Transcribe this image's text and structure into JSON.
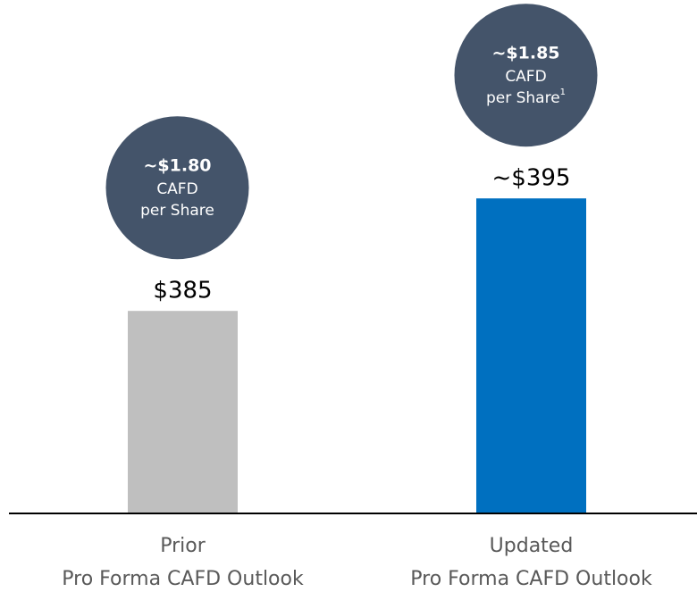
{
  "chart_data": {
    "type": "bar",
    "categories": [
      [
        "Prior",
        "Pro Forma CAFD Outlook"
      ],
      [
        "Updated",
        "Pro Forma CAFD Outlook"
      ]
    ],
    "values": [
      385,
      395
    ],
    "value_labels": [
      "$385",
      "~$395"
    ],
    "colors": [
      "#bfbfbf",
      "#0070c0"
    ],
    "ylim": [
      367,
      412
    ],
    "annotations": [
      {
        "headline": "~$1.80",
        "lines": [
          "CAFD",
          "per Share"
        ]
      },
      {
        "headline": "~$1.85",
        "lines": [
          "CAFD",
          "per Share"
        ],
        "footnote": "1"
      }
    ]
  }
}
